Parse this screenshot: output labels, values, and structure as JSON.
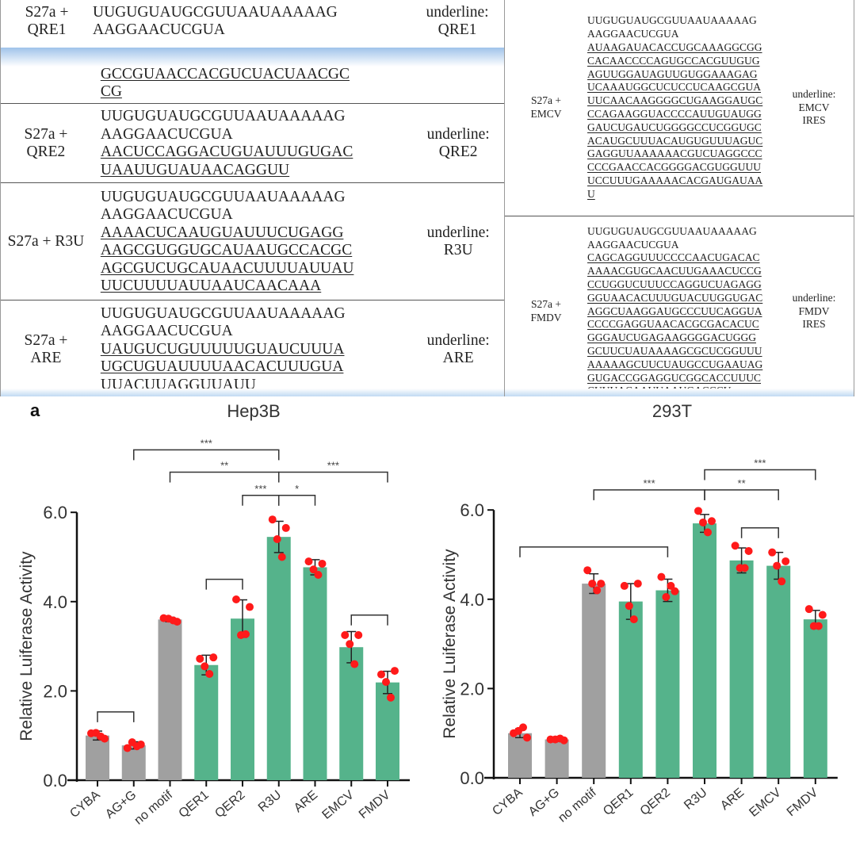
{
  "tables": {
    "left": [
      {
        "label": [
          "S27a +",
          "QRE1"
        ],
        "lines": [
          {
            "t": "UUGUGUAUGCGUUAAUAAAAAG",
            "u": false
          },
          {
            "t": "AAGGAACUCGUA",
            "u": false
          }
        ],
        "note": [
          "underline:",
          "QRE1"
        ]
      },
      {
        "label": [],
        "lines": [
          {
            "t": "GCCGUAACCACGUCUACUAACGC",
            "u": true
          },
          {
            "t": "CG",
            "u": true
          }
        ],
        "note": []
      },
      {
        "label": [
          "S27a +",
          "QRE2"
        ],
        "lines": [
          {
            "t": "UUGUGUAUGCGUUAAUAAAAAG",
            "u": false
          },
          {
            "t": "AAGGAACUCGUA",
            "u": false
          },
          {
            "t": "AACUCCAGGACUGUAUUUGUGAC",
            "u": true
          },
          {
            "t": "UAAUUGUAUAACAGGUU",
            "u": true
          }
        ],
        "note": [
          "underline:",
          "QRE2"
        ]
      },
      {
        "label": [
          "S27a + R3U"
        ],
        "lines": [
          {
            "t": "UUGUGUAUGCGUUAAUAAAAAG",
            "u": false
          },
          {
            "t": "AAGGAACUCGUA",
            "u": false
          },
          {
            "t": "AAAACUCAAUGUAUUUCUGAGG",
            "u": true
          },
          {
            "t": "AAGCGUGGUGCAUAAUGCCACGC",
            "u": true
          },
          {
            "t": "AGCGUCUGCAUAACUUUUAUUAU",
            "u": true
          },
          {
            "t": "UUCUUUUAUUAAUCAACAAA",
            "u": true
          }
        ],
        "note": [
          "underline:",
          "R3U"
        ]
      },
      {
        "label": [
          "S27a +",
          "ARE"
        ],
        "lines": [
          {
            "t": "UUGUGUAUGCGUUAAUAAAAAG",
            "u": false
          },
          {
            "t": "AAGGAACUCGUA",
            "u": false
          },
          {
            "t": "UAUGUCUGUUUUUGUAUCUUUA",
            "u": true
          },
          {
            "t": "UGCUGUAUUUUAACACUUUGUA",
            "u": true
          },
          {
            "t": "UUACUUAGGUUAUU",
            "u": true
          }
        ],
        "note": [
          "underline:",
          "ARE"
        ]
      }
    ],
    "right": [
      {
        "label": [
          "S27a +",
          "EMCV"
        ],
        "lines": [
          {
            "t": "UUGUGUAUGCGUUAAUAAAAAG",
            "u": false
          },
          {
            "t": "AAGGAACUCGUA",
            "u": false
          },
          {
            "t": "AUAAGAUACACCUGCAAAGGCGG",
            "u": true
          },
          {
            "t": "CACAACCCCAGUGCCACGUUGUG",
            "u": true
          },
          {
            "t": "AGUUGGAUAGUUGUGGAAAGAG",
            "u": true
          },
          {
            "t": "UCAAAUGGCUCUCCUCAAGCGUA",
            "u": true
          },
          {
            "t": "UUCAACAAGGGGCUGAAGGAUGC",
            "u": true
          },
          {
            "t": "CCAGAAGGUACCCCAUUGUAUGG",
            "u": true
          },
          {
            "t": "GAUCUGAUCUGGGGCCUCGGUGC",
            "u": true
          },
          {
            "t": "ACAUGCUUUACAUGUGUUUAGUC",
            "u": true
          },
          {
            "t": "GAGGUUAAAAAACGUCUAGGCCC",
            "u": true
          },
          {
            "t": "CCCGAACCACGGGGACGUGGUUU",
            "u": true
          },
          {
            "t": "UCCUUUGAAAAACACGAUGAUAA",
            "u": true
          },
          {
            "t": "U",
            "u": true
          }
        ],
        "note": [
          "underline:",
          "EMCV",
          "IRES"
        ]
      },
      {
        "label": [
          "S27a +",
          "FMDV"
        ],
        "lines": [
          {
            "t": "UUGUGUAUGCGUUAAUAAAAAG",
            "u": false
          },
          {
            "t": "AAGGAACUCGUA",
            "u": false
          },
          {
            "t": "CAGCAGGUUUCCCCAACUGACAC",
            "u": true
          },
          {
            "t": "AAAACGUGCAACUUGAAACUCCG",
            "u": true
          },
          {
            "t": "CCUGGUCUUUCCAGGUCUAGAGG",
            "u": true
          },
          {
            "t": "GGUAACACUUUGUACUUGGUGAC",
            "u": true
          },
          {
            "t": "AGGCUAAGGAUGCCCUUCAGGUA",
            "u": true
          },
          {
            "t": "CCCCGAGGUAACACGCGACACUC",
            "u": true
          },
          {
            "t": "GGGAUCUGAGAAGGGGACUGGG",
            "u": true
          },
          {
            "t": "GCUUCUAUAAAAGCGCUCGGUUU",
            "u": true
          },
          {
            "t": "AAAAAGCUUCUAUGCCUGAAUAG",
            "u": true
          },
          {
            "t": "GUGACCGGAGGUCGGCACCUUUC",
            "u": true
          },
          {
            "t": "CUUUACAAUUAAUGACCCU",
            "u": true
          }
        ],
        "note": [
          "underline:",
          "FMDV",
          "IRES"
        ]
      }
    ]
  },
  "panel_label": "a",
  "colors": {
    "control": "#a0a0a0",
    "motif": "#55b38b",
    "points": "#ff1a1a",
    "axis": "#111111"
  },
  "chart_data": [
    {
      "type": "bar",
      "title": "Hep3B",
      "ylabel": "Relative Luiferase Activity",
      "xlabel": "",
      "ylim": [
        0,
        6
      ],
      "yticks": [
        "0.0",
        "2.0",
        "4.0",
        "6.0"
      ],
      "grid": false,
      "categories": [
        "CYBA",
        "AG+G",
        "no motif",
        "QER1",
        "QER2",
        "R3U",
        "ARE",
        "EMCV",
        "FMDV"
      ],
      "bar_groups": [
        "control",
        "control",
        "control",
        "motif",
        "motif",
        "motif",
        "motif",
        "motif",
        "motif"
      ],
      "values": [
        1.0,
        0.78,
        3.6,
        2.58,
        3.62,
        5.45,
        4.77,
        2.98,
        2.19
      ],
      "errors": [
        0.1,
        0.08,
        0.05,
        0.22,
        0.42,
        0.35,
        0.17,
        0.35,
        0.25
      ],
      "points": [
        [
          1.05,
          0.93,
          1.06,
          0.98
        ],
        [
          0.72,
          0.8,
          0.85,
          0.76
        ],
        [
          3.63,
          3.55,
          3.62,
          3.58
        ],
        [
          2.72,
          2.75,
          2.55,
          2.38
        ],
        [
          4.05,
          3.88,
          3.25,
          3.27
        ],
        [
          5.84,
          5.65,
          5.4,
          5.0
        ],
        [
          4.9,
          4.85,
          4.72,
          4.6
        ],
        [
          3.25,
          3.25,
          3.05,
          2.6
        ],
        [
          2.37,
          2.45,
          2.2,
          1.85
        ]
      ],
      "significance": [
        {
          "from": "AG+G",
          "to": "R3U",
          "level": 7.4,
          "label": "***"
        },
        {
          "from": "no motif",
          "to": "R3U",
          "level": 6.9,
          "label": "**"
        },
        {
          "from": "R3U",
          "to": "FMDV",
          "level": 6.9,
          "label": "***"
        },
        {
          "from": "QER2",
          "to": "R3U",
          "level": 6.38,
          "label": "***"
        },
        {
          "from": "R3U",
          "to": "ARE",
          "level": 6.38,
          "label": "*"
        },
        {
          "from": "QER1",
          "to": "QER2",
          "level": 4.5,
          "label": ""
        },
        {
          "from": "EMCV",
          "to": "FMDV",
          "level": 3.7,
          "label": ""
        },
        {
          "from": "CYBA",
          "to": "AG+G",
          "level": 1.53,
          "label": ""
        }
      ]
    },
    {
      "type": "bar",
      "title": "293T",
      "ylabel": "Relative Luiferase Activity",
      "xlabel": "",
      "ylim": [
        0,
        6
      ],
      "yticks": [
        "0.0",
        "2.0",
        "4.0",
        "6.0"
      ],
      "grid": false,
      "categories": [
        "CYBA",
        "AG+G",
        "no motif",
        "QER1",
        "QER2",
        "R3U",
        "ARE",
        "EMCV",
        "FMDV"
      ],
      "bar_groups": [
        "control",
        "control",
        "control",
        "motif",
        "motif",
        "motif",
        "motif",
        "motif",
        "motif"
      ],
      "values": [
        1.0,
        0.86,
        4.35,
        3.95,
        4.2,
        5.7,
        4.87,
        4.75,
        3.55
      ],
      "errors": [
        0.1,
        0.02,
        0.22,
        0.4,
        0.25,
        0.2,
        0.28,
        0.3,
        0.2
      ],
      "points": [
        [
          1.0,
          0.9,
          1.05,
          1.13
        ],
        [
          0.86,
          0.84,
          0.86,
          0.88
        ],
        [
          4.65,
          4.35,
          4.35,
          4.2
        ],
        [
          4.3,
          4.35,
          3.85,
          3.55
        ],
        [
          4.5,
          4.18,
          4.05,
          4.3
        ],
        [
          5.98,
          5.75,
          5.72,
          5.5
        ],
        [
          5.2,
          5.08,
          4.7,
          4.7
        ],
        [
          5.05,
          4.85,
          4.75,
          4.4
        ],
        [
          3.78,
          3.65,
          3.4,
          3.4
        ]
      ],
      "significance": [
        {
          "from": "R3U",
          "to": "FMDV",
          "level": 6.9,
          "label": "***"
        },
        {
          "from": "no motif",
          "to": "R3U",
          "level": 6.45,
          "label": "***"
        },
        {
          "from": "R3U",
          "to": "EMCV",
          "level": 6.45,
          "label": "**"
        },
        {
          "from": "ARE",
          "to": "EMCV",
          "level": 5.6,
          "label": ""
        },
        {
          "from": "CYBA",
          "to": "QER2",
          "level": 5.17,
          "label": ""
        }
      ]
    }
  ]
}
